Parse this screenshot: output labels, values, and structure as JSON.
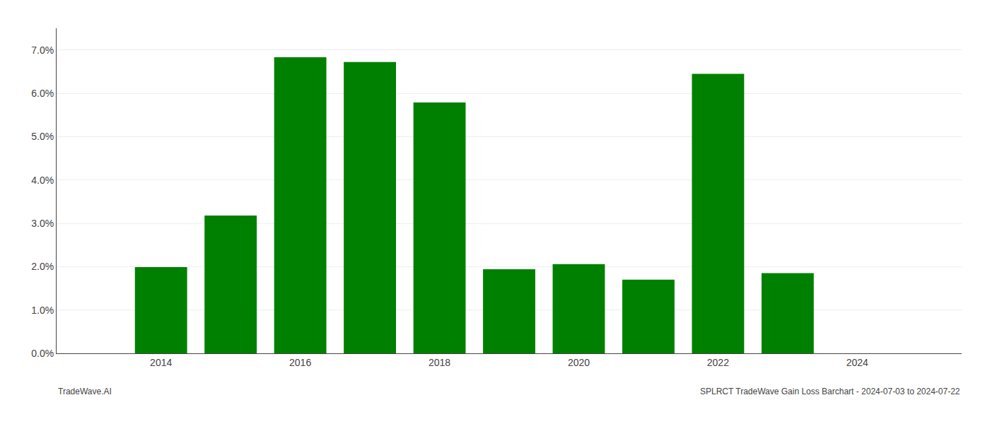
{
  "chart_data": {
    "type": "bar",
    "x": [
      2014,
      2015,
      2016,
      2017,
      2018,
      2019,
      2020,
      2021,
      2022,
      2023
    ],
    "values": [
      0.0199,
      0.0318,
      0.0683,
      0.0672,
      0.0579,
      0.0194,
      0.0206,
      0.017,
      0.0645,
      0.0185
    ],
    "color": "#008000",
    "xlim": [
      2012.5,
      2025.5
    ],
    "xticks": [
      2014,
      2016,
      2018,
      2020,
      2022,
      2024
    ],
    "ylim": [
      0,
      0.075
    ],
    "yticks": [
      {
        "value": 0.0,
        "label": "0.0%"
      },
      {
        "value": 0.01,
        "label": "1.0%"
      },
      {
        "value": 0.02,
        "label": "2.0%"
      },
      {
        "value": 0.03,
        "label": "3.0%"
      },
      {
        "value": 0.04,
        "label": "4.0%"
      },
      {
        "value": 0.05,
        "label": "5.0%"
      },
      {
        "value": 0.06,
        "label": "6.0%"
      },
      {
        "value": 0.07,
        "label": "7.0%"
      }
    ],
    "grid": true,
    "annotations": [
      "TradeWave.AI",
      "SPLRCT TradeWave Gain Loss Barchart - 2024-07-03 to 2024-07-22"
    ]
  }
}
